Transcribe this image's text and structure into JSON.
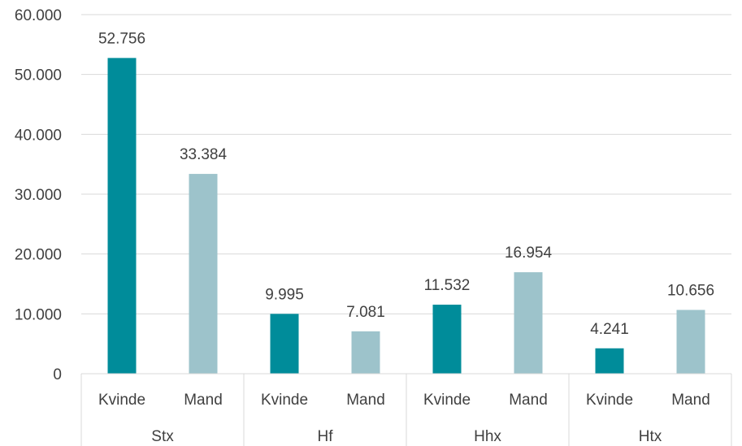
{
  "chart_data": {
    "type": "bar",
    "title": "",
    "xlabel": "",
    "ylabel": "",
    "ylim": [
      0,
      60000
    ],
    "yticks": [
      0,
      10000,
      20000,
      30000,
      40000,
      50000,
      60000
    ],
    "ytick_labels": [
      "0",
      "10.000",
      "20.000",
      "30.000",
      "40.000",
      "50.000",
      "60.000"
    ],
    "grid": true,
    "legend": "none",
    "groups": [
      {
        "name": "Stx",
        "categories": [
          "Kvinde",
          "Mand"
        ],
        "values": [
          52756,
          33384
        ],
        "labels": [
          "52.756",
          "33.384"
        ]
      },
      {
        "name": "Hf",
        "categories": [
          "Kvinde",
          "Mand"
        ],
        "values": [
          9995,
          7081
        ],
        "labels": [
          "9.995",
          "7.081"
        ]
      },
      {
        "name": "Hhx",
        "categories": [
          "Kvinde",
          "Mand"
        ],
        "values": [
          11532,
          16954
        ],
        "labels": [
          "11.532",
          "16.954"
        ]
      },
      {
        "name": "Htx",
        "categories": [
          "Kvinde",
          "Mand"
        ],
        "values": [
          4241,
          10656
        ],
        "labels": [
          "4.241",
          "10.656"
        ]
      }
    ],
    "colors": {
      "Kvinde": "#008c9a",
      "Mand": "#9dc3cb",
      "grid": "#d9d9d9",
      "text": "#404040"
    }
  }
}
